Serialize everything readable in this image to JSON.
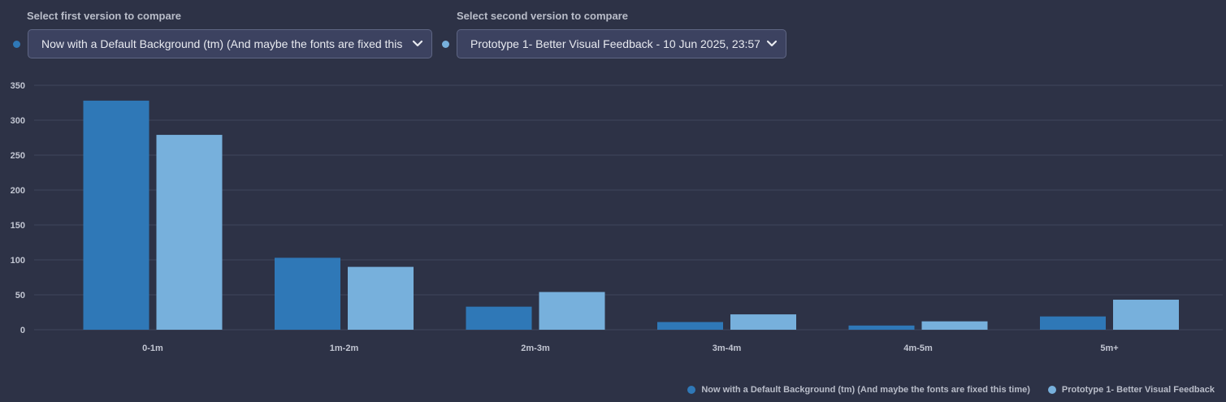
{
  "selectors": {
    "first": {
      "label": "Select first version to compare",
      "value": "Now with a Default Background (tm) (And maybe the fonts are fixed this time)",
      "color": "#2f78b7"
    },
    "second": {
      "label": "Select second version to compare",
      "value": "Prototype 1- Better Visual Feedback - 10 Jun 2025, 23:57",
      "color": "#77b0dc"
    }
  },
  "chart_data": {
    "type": "bar",
    "categories": [
      "0-1m",
      "1m-2m",
      "2m-3m",
      "3m-4m",
      "4m-5m",
      "5m+"
    ],
    "series": [
      {
        "name": "Now with a Default Background (tm) (And maybe the fonts are fixed this time)",
        "values": [
          328,
          103,
          33,
          11,
          6,
          19
        ],
        "color": "#2f78b7"
      },
      {
        "name": "Prototype 1- Better Visual Feedback",
        "values": [
          279,
          90,
          54,
          22,
          12,
          43
        ],
        "color": "#77b0dc"
      }
    ],
    "y_ticks": [
      0,
      50,
      100,
      150,
      200,
      250,
      300,
      350
    ],
    "ylim": [
      0,
      350
    ],
    "grid": true,
    "legend_position": "bottom-right",
    "title": "",
    "xlabel": "",
    "ylabel": ""
  }
}
